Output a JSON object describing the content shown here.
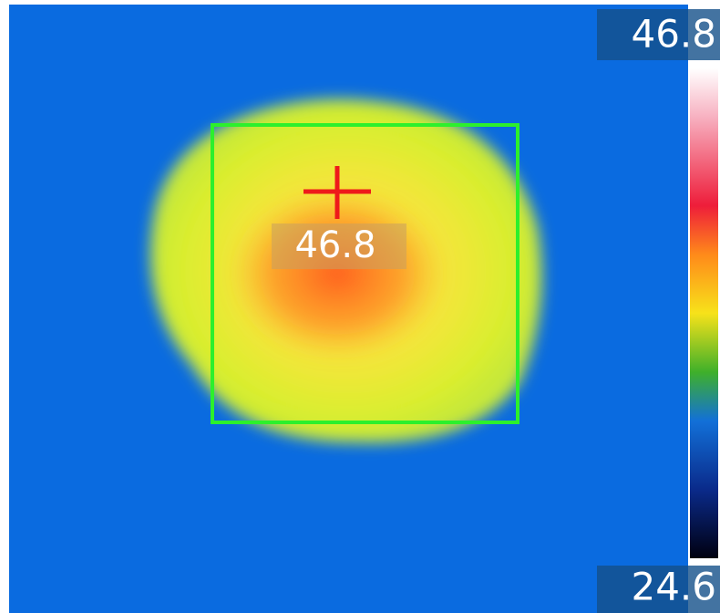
{
  "scale": {
    "max": "46.8",
    "min": "24.6"
  },
  "spot": {
    "label": "46.8"
  }
}
